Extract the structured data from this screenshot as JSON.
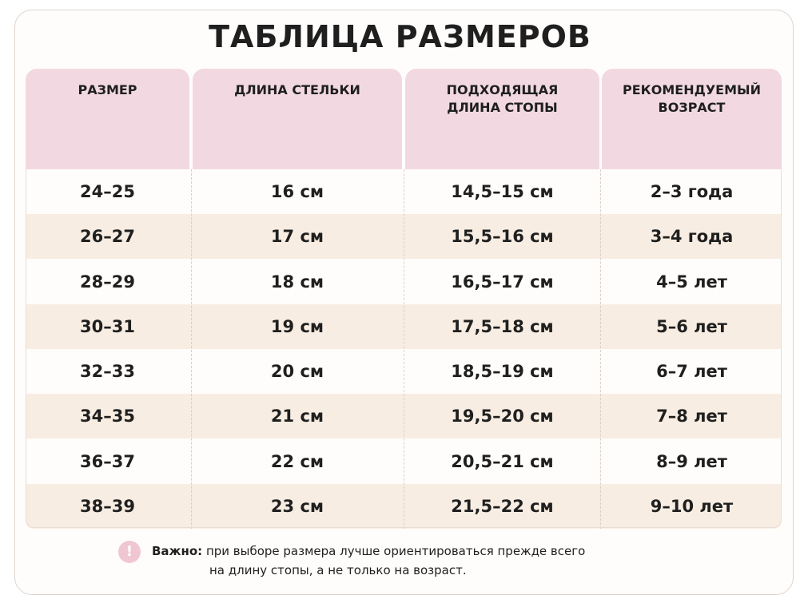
{
  "title": "ТАБЛИЦА РАЗМЕРОВ",
  "table": {
    "headers": [
      [
        "РАЗМЕР"
      ],
      [
        "ДЛИНА СТЕЛЬКИ"
      ],
      [
        "ПОДХОДЯЩАЯ",
        "ДЛИНА СТОПЫ"
      ],
      [
        "РЕКОМЕНДУЕМЫЙ",
        "ВОЗРАСТ"
      ]
    ],
    "rows": [
      [
        "24–25",
        "16 см",
        "14,5–15 см",
        "2–3 года"
      ],
      [
        "26–27",
        "17 см",
        "15,5–16 см",
        "3–4 года"
      ],
      [
        "28–29",
        "18 см",
        "16,5–17 см",
        "4–5 лет"
      ],
      [
        "30–31",
        "19 см",
        "17,5–18 см",
        "5–6 лет"
      ],
      [
        "32–33",
        "20 см",
        "18,5–19 см",
        "6–7 лет"
      ],
      [
        "34–35",
        "21 см",
        "19,5–20 см",
        "7–8 лет"
      ],
      [
        "36–37",
        "22 см",
        "20,5–21 см",
        "8–9 лет"
      ],
      [
        "38–39",
        "23 см",
        "21,5–22 см",
        "9–10 лет"
      ]
    ]
  },
  "note": {
    "label": "Важно:",
    "lines": [
      "при выборе размера лучше ориентироваться прежде всего",
      "на длину стопы, а не только на возраст."
    ]
  }
}
